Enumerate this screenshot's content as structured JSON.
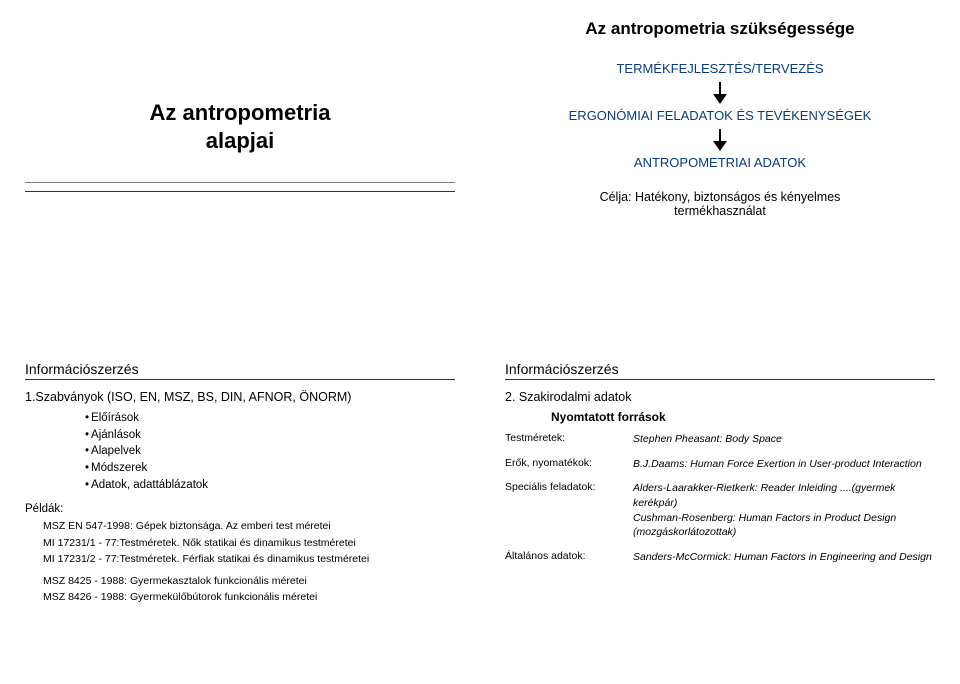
{
  "slide1": {
    "title_line1": "Az antropometria",
    "title_line2": "alapjai"
  },
  "slide2": {
    "title": "Az antropometria szükségessége",
    "flow1": "TERMÉKFEJLESZTÉS/TERVEZÉS",
    "flow2": "ERGONÓMIAI FELADATOK ÉS TEVÉKENYSÉGEK",
    "flow3": "ANTROPOMETRIAI ADATOK",
    "goal_line1": "Célja: Hatékony, biztonságos és kényelmes",
    "goal_line2": "termékhasználat"
  },
  "slide3": {
    "section": "Információszerzés",
    "subhead": "1.Szabványok (ISO, EN, MSZ, BS, DIN, AFNOR, ÖNORM)",
    "bullets": [
      "Előírások",
      "Ajánlások",
      "Alapelvek",
      "Módszerek",
      "Adatok, adattáblázatok"
    ],
    "examples_label": "Példák:",
    "examples": [
      "MSZ EN 547-1998: Gépek biztonsága. Az emberi test méretei",
      "MI 17231/1 - 77:Testméretek. Nők statikai és dinamikus testméretei",
      "MI 17231/2 - 77:Testméretek. Férfiak statikai és dinamikus testméretei",
      "MSZ 8425 - 1988: Gyermekasztalok funkcionális méretei",
      "MSZ 8426 - 1988: Gyermekülőbútorok funkcionális méretei"
    ]
  },
  "slide4": {
    "section": "Információszerzés",
    "subhead": "2. Szakirodalmi adatok",
    "printed_label": "Nyomtatott források",
    "rows": [
      {
        "k": "Testméretek:",
        "v": "Stephen Pheasant: Body Space"
      },
      {
        "k": "Erők, nyomatékok:",
        "v": "B.J.Daams: Human Force Exertion in User-product Interaction"
      },
      {
        "k": "Speciális feladatok:",
        "v": "Alders-Laarakker-Rietkerk: Reader Inleiding ....(gyermek kerékpár)\nCushman-Rosenberg: Human Factors in Product Design (mozgáskorlátozottak)"
      },
      {
        "k": "Általános adatok:",
        "v": "Sanders-McCormick: Human Factors in Engineering and Design"
      }
    ]
  }
}
